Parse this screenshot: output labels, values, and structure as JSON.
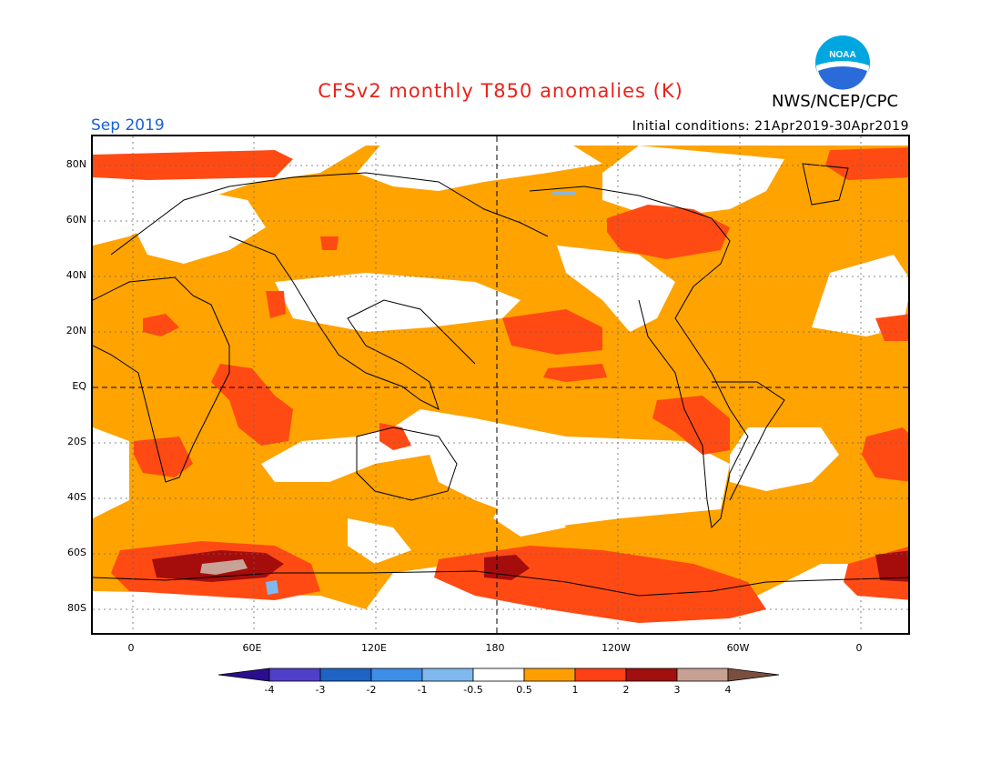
{
  "title": "CFSv2 monthly T850 anomalies (K)",
  "agency": "NWS/NCEP/CPC",
  "logo_text": "NOAA",
  "valid_month": "Sep 2019",
  "initial_conditions": "Initial conditions: 21Apr2019-30Apr2019",
  "lat_labels": [
    "80N",
    "60N",
    "40N",
    "20N",
    "EQ",
    "20S",
    "40S",
    "60S",
    "80S"
  ],
  "lon_labels": [
    "0",
    "60E",
    "120E",
    "180",
    "120W",
    "60W",
    "0"
  ],
  "colorbar": {
    "labels": [
      "-4",
      "-3",
      "-2",
      "-1",
      "-0.5",
      "0.5",
      "1",
      "2",
      "3",
      "4"
    ],
    "colors": [
      "#2a0e8f",
      "#4f3fc9",
      "#1f63c4",
      "#3d8ee6",
      "#7fb9f0",
      "#ffffff",
      "#ff9e00",
      "#ff3f14",
      "#a10f0f",
      "#c6a193",
      "#7b4f3f"
    ]
  },
  "colors": {
    "title": "#e8231b",
    "month": "#1a5fdc",
    "warm1": "#ffa300",
    "warm2": "#ff4a14",
    "warm3": "#a50d0d",
    "warm4": "#c9a297",
    "cool1": "#7fb9f0"
  }
}
